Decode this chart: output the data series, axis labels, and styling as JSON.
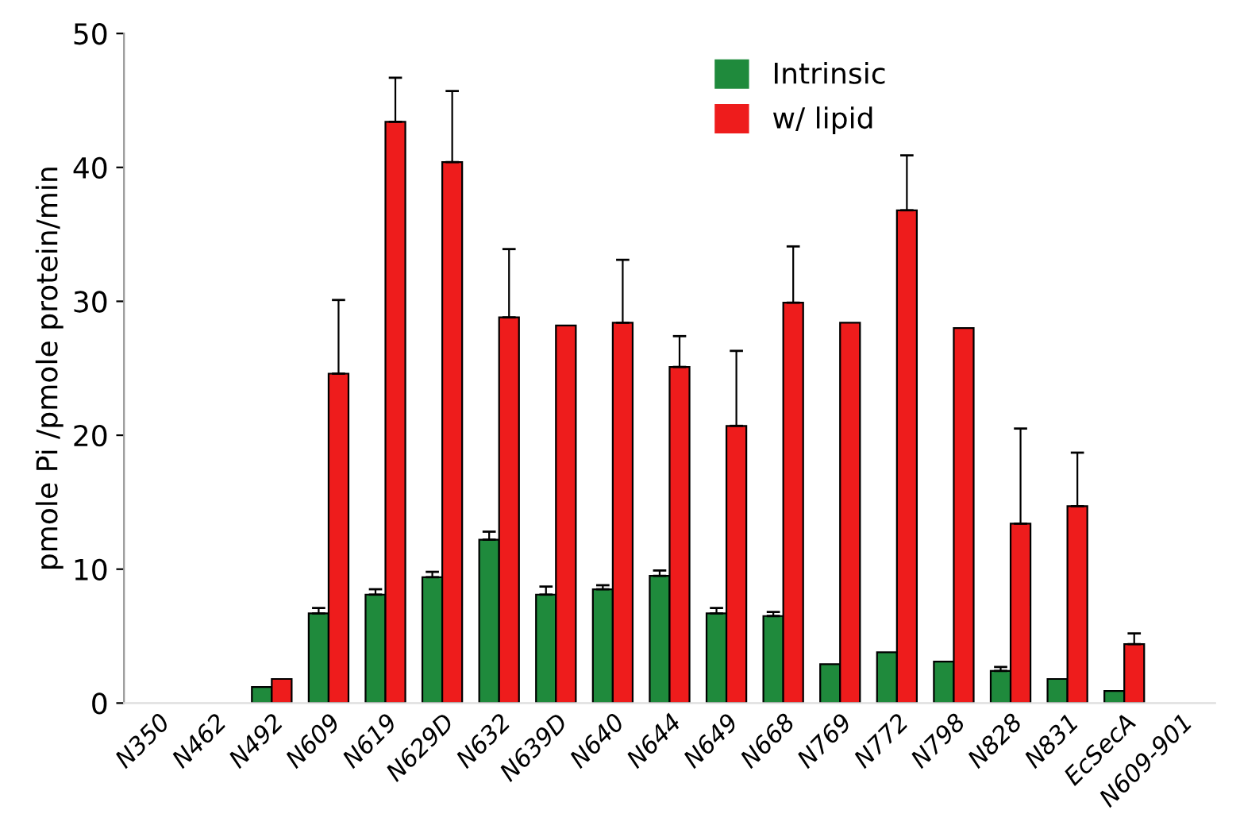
{
  "chart_data": {
    "type": "bar",
    "ylabel": "pmole Pi /pmole protein/min",
    "categories": [
      "N350",
      "N462",
      "N492",
      "N609",
      "N619",
      "N629D",
      "N632",
      "N639D",
      "N640",
      "N644",
      "N649",
      "N668",
      "N769",
      "N772",
      "N798",
      "N828",
      "N831",
      "EcSecA",
      "N609-901"
    ],
    "series": [
      {
        "name": "Intrinsic",
        "color": "#1f8a3c",
        "values": [
          0,
          0,
          1.2,
          6.7,
          8.1,
          9.4,
          12.2,
          8.1,
          8.5,
          9.5,
          6.7,
          6.5,
          2.9,
          3.8,
          3.1,
          2.4,
          1.8,
          0.9,
          0
        ],
        "errors": [
          null,
          null,
          null,
          0.4,
          0.4,
          0.4,
          0.6,
          0.6,
          0.3,
          0.4,
          0.4,
          0.3,
          null,
          null,
          null,
          0.3,
          null,
          null,
          null
        ]
      },
      {
        "name": "w/ lipid",
        "color": "#ee1c1c",
        "values": [
          0,
          0,
          1.8,
          24.6,
          43.4,
          40.4,
          28.8,
          28.2,
          28.4,
          25.1,
          20.7,
          29.9,
          28.4,
          36.8,
          28.0,
          13.4,
          14.7,
          4.4,
          0
        ],
        "errors": [
          null,
          null,
          null,
          5.5,
          3.3,
          5.3,
          5.1,
          null,
          4.7,
          2.3,
          5.6,
          4.2,
          null,
          4.1,
          null,
          7.1,
          4.0,
          0.8,
          null
        ]
      }
    ],
    "ylim": [
      0,
      50
    ],
    "yticks": [
      0,
      10,
      20,
      30,
      40,
      50
    ],
    "grid": false,
    "legend": "top"
  }
}
